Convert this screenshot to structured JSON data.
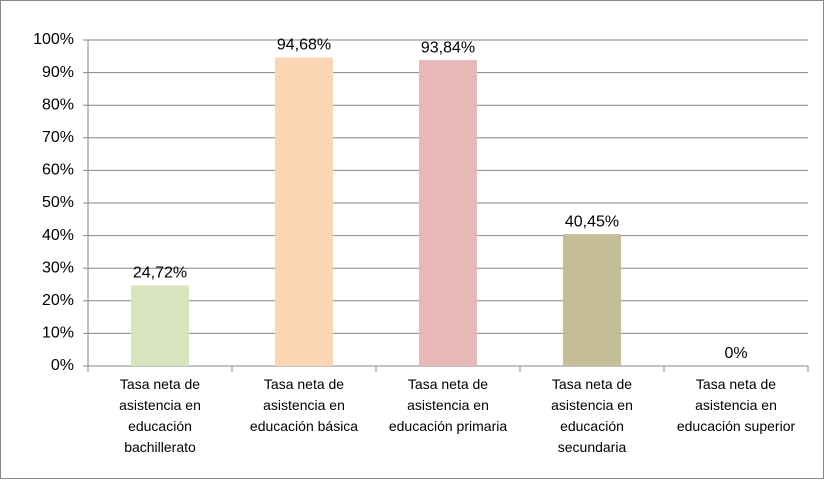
{
  "chart_data": {
    "type": "bar",
    "categories": [
      "Tasa neta de asistencia en educación bachillerato",
      "Tasa neta de asistencia en educación básica",
      "Tasa neta de asistencia en educación primaria",
      "Tasa neta de asistencia en educación secundaria",
      "Tasa neta de asistencia en educación superior"
    ],
    "values": [
      24.72,
      94.68,
      93.84,
      40.45,
      0
    ],
    "value_labels": [
      "24,72%",
      "94,68%",
      "93,84%",
      "40,45%",
      "0%"
    ],
    "colors": [
      "#d7e4bd",
      "#fcd5b5",
      "#e6b9b8",
      "#c4bd97",
      "#b7dee8"
    ],
    "ylim": [
      0,
      100
    ],
    "yticks": [
      {
        "value": 0,
        "label": "0%"
      },
      {
        "value": 10,
        "label": "10%"
      },
      {
        "value": 20,
        "label": "20%"
      },
      {
        "value": 30,
        "label": "30%"
      },
      {
        "value": 40,
        "label": "40%"
      },
      {
        "value": 50,
        "label": "50%"
      },
      {
        "value": 60,
        "label": "60%"
      },
      {
        "value": 70,
        "label": "70%"
      },
      {
        "value": 80,
        "label": "80%"
      },
      {
        "value": 90,
        "label": "90%"
      },
      {
        "value": 100,
        "label": "100%"
      }
    ],
    "grid": true
  }
}
